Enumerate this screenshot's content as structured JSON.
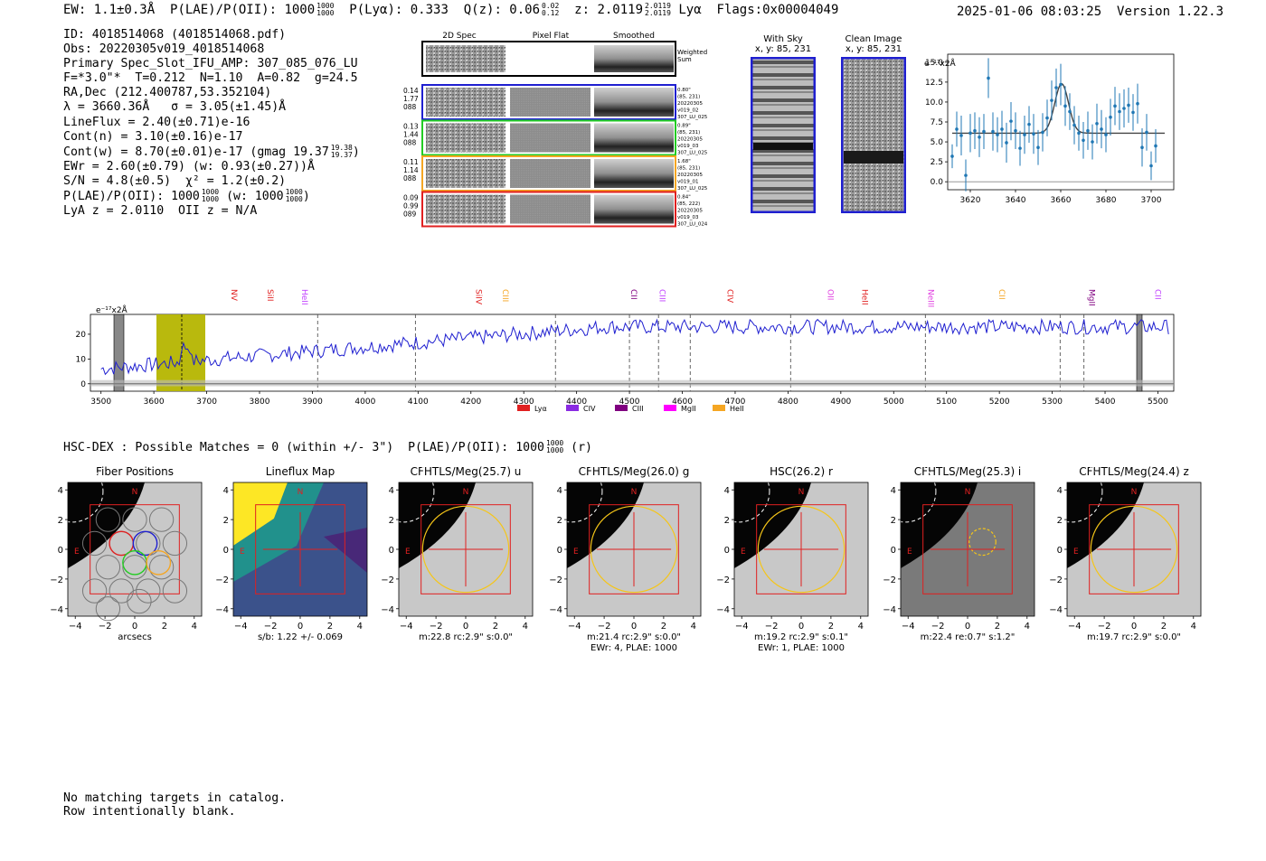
{
  "header": {
    "ew": "EW: 1.1±0.3Å",
    "plae": "P(LAE)/P(OII): 1000",
    "plae_hi": "1000",
    "plae_lo": "1000",
    "plya": "P(Lyα): 0.333",
    "qz": "Q(z): 0.06",
    "qz_hi": "0.02",
    "qz_lo": "0.12",
    "z": "z: 2.0119",
    "z_hi": "2.0119",
    "z_lo": "2.0119",
    "line": "Lyα",
    "flags": "Flags:0x00004049",
    "datetime": "2025-01-06 08:03:25",
    "version": "Version 1.22.3"
  },
  "info": {
    "id": "ID: 4018514068 (4018514068.pdf)",
    "obs": "Obs: 20220305v019_4018514068",
    "primary": "Primary Spec_Slot_IFU_AMP: 307_085_076_LU",
    "fwhm": "F=*3.0\"*  T=0.212  N=1.10  A=0.82  g=24.5",
    "radec": "RA,Dec (212.400787,53.352104)",
    "lambda": "λ = 3660.36Å   σ = 3.05(±1.45)Å",
    "lineflux": "LineFlux = 2.40(±0.71)e-16",
    "contn": "Cont(n) = 3.10(±0.16)e-17",
    "contw": "Cont(w) = 8.70(±0.01)e-17 (gmag 19.37",
    "contw_hi": "19.38",
    "contw_lo": "19.37",
    "ewr": "EWr = 2.60(±0.79) (w: 0.93(±0.27))Å",
    "sn": "S/N = 4.8(±0.5)  χ² = 1.2(±0.2)",
    "plae": "P(LAE)/P(OII): 1000",
    "plae_hi": "1000",
    "plae_lo": "1000",
    "plae_w": "(w: 1000",
    "plae_w_hi": "1000",
    "plae_w_lo": "1000",
    "lya": "LyA z = 2.0110  OII z = N/A"
  },
  "fibers": {
    "col_titles": [
      "2D Spec",
      "Pixel Flat",
      "Smoothed"
    ],
    "weighted_sum": "Weighted\nSum",
    "rows": [
      {
        "left": [
          "0.14",
          "1.77",
          "088"
        ],
        "right": [
          "0.80\"",
          "(85, 231)",
          "20220305",
          "v019_02",
          "307_LU_025"
        ],
        "color": "#1f1fd0"
      },
      {
        "left": [
          "0.13",
          "1.44",
          "088"
        ],
        "right": [
          "0.89\"",
          "(85, 231)",
          "20220305",
          "v019_03",
          "307_LU_025"
        ],
        "color": "#22cc22"
      },
      {
        "left": [
          "0.11",
          "1.14",
          "088"
        ],
        "right": [
          "1.68\"",
          "(85, 231)",
          "20220305",
          "v019_01",
          "307_LU_025"
        ],
        "color": "#f5a623"
      },
      {
        "left": [
          "0.09",
          "0.99",
          "089"
        ],
        "right": [
          "0.84\"",
          "(85, 222)",
          "20220305",
          "v019_03",
          "307_LU_024"
        ],
        "color": "#e02020"
      }
    ]
  },
  "sky": {
    "with_sky_title": "With Sky",
    "with_sky_sub": "x, y: 85, 231",
    "clean_title": "Clean Image",
    "clean_sub": "x, y: 85, 231"
  },
  "zoom_plot": {
    "ylabel": "e⁻¹⁷x2Å",
    "xticks": [
      "3620",
      "3640",
      "3660",
      "3680",
      "3700"
    ],
    "yticks": [
      "0.0",
      "2.5",
      "5.0",
      "7.5",
      "10.0",
      "12.5",
      "15.0"
    ]
  },
  "full_spectrum": {
    "ylabel": "e⁻¹⁷x2Å",
    "xticks": [
      "3500",
      "3600",
      "3700",
      "3800",
      "3900",
      "4000",
      "4100",
      "4200",
      "4300",
      "4400",
      "4500",
      "4600",
      "4700",
      "4800",
      "4900",
      "5000",
      "5100",
      "5200",
      "5300",
      "5400",
      "5500"
    ],
    "yticks": [
      "0",
      "10",
      "20"
    ],
    "lines": [
      {
        "name": "NV",
        "color": "#e02020"
      },
      {
        "name": "SiII",
        "color": "#e02020"
      },
      {
        "name": "HeII",
        "color": "#c040ff"
      },
      {
        "name": "SiIV",
        "color": "#e02020"
      },
      {
        "name": "CIII",
        "color": "#f5a623"
      },
      {
        "name": "CII",
        "color": "#800080"
      },
      {
        "name": "CIII",
        "color": "#c040ff"
      },
      {
        "name": "CIV",
        "color": "#e02020"
      },
      {
        "name": "OII",
        "color": "#e040e0"
      },
      {
        "name": "HeII",
        "color": "#e02020"
      },
      {
        "name": "NeIII",
        "color": "#e040e0"
      },
      {
        "name": "CII",
        "color": "#f5a623"
      },
      {
        "name": "MgII",
        "color": "#800080"
      },
      {
        "name": "CII",
        "color": "#c040ff"
      }
    ],
    "legend": [
      {
        "name": "Lyα",
        "color": "#e02020"
      },
      {
        "name": "CIV",
        "color": "#8a2be2"
      },
      {
        "name": "CIII",
        "color": "#800080"
      },
      {
        "name": "MgII",
        "color": "#ff00ff"
      },
      {
        "name": "HeII",
        "color": "#f5a623"
      }
    ]
  },
  "hsc": {
    "line": "HSC-DEX : Possible Matches = 0 (within +/- 3\")  P(LAE)/P(OII): 1000",
    "hi": "1000",
    "lo": "1000",
    "suffix": "(r)"
  },
  "cutouts": [
    {
      "title": "Fiber Positions",
      "cap1": "arcsecs",
      "cap2": ""
    },
    {
      "title": "Lineflux Map",
      "cap1": "s/b: 1.22 +/- 0.069",
      "cap2": ""
    },
    {
      "title": "CFHTLS/Meg(25.7) u",
      "cap1": "m:22.8 rc:2.9\"  s:0.0\"",
      "cap2": ""
    },
    {
      "title": "CFHTLS/Meg(26.0) g",
      "cap1": "m:21.4 rc:2.9\"  s:0.0\"",
      "cap2": "EWr: 4, PLAE: 1000"
    },
    {
      "title": "HSC(26.2) r",
      "cap1": "m:19.2 rc:2.9\"  s:0.1\"",
      "cap2": "EWr: 1, PLAE: 1000"
    },
    {
      "title": "CFHTLS/Meg(25.3) i",
      "cap1": "m:22.4  re:0.7\"  s:1.2\"",
      "cap2": ""
    },
    {
      "title": "CFHTLS/Meg(24.4) z",
      "cap1": "m:19.7 rc:2.9\"  s:0.0\"",
      "cap2": ""
    }
  ],
  "cutout_axes": {
    "xticks": [
      "−4",
      "−2",
      "0",
      "2",
      "4"
    ],
    "yticks": [
      "4",
      "2",
      "0",
      "−2",
      "−4"
    ],
    "n": "N",
    "e": "E"
  },
  "footer": {
    "line1": "No matching targets in catalog.",
    "line2": "Row intentionally blank."
  }
}
